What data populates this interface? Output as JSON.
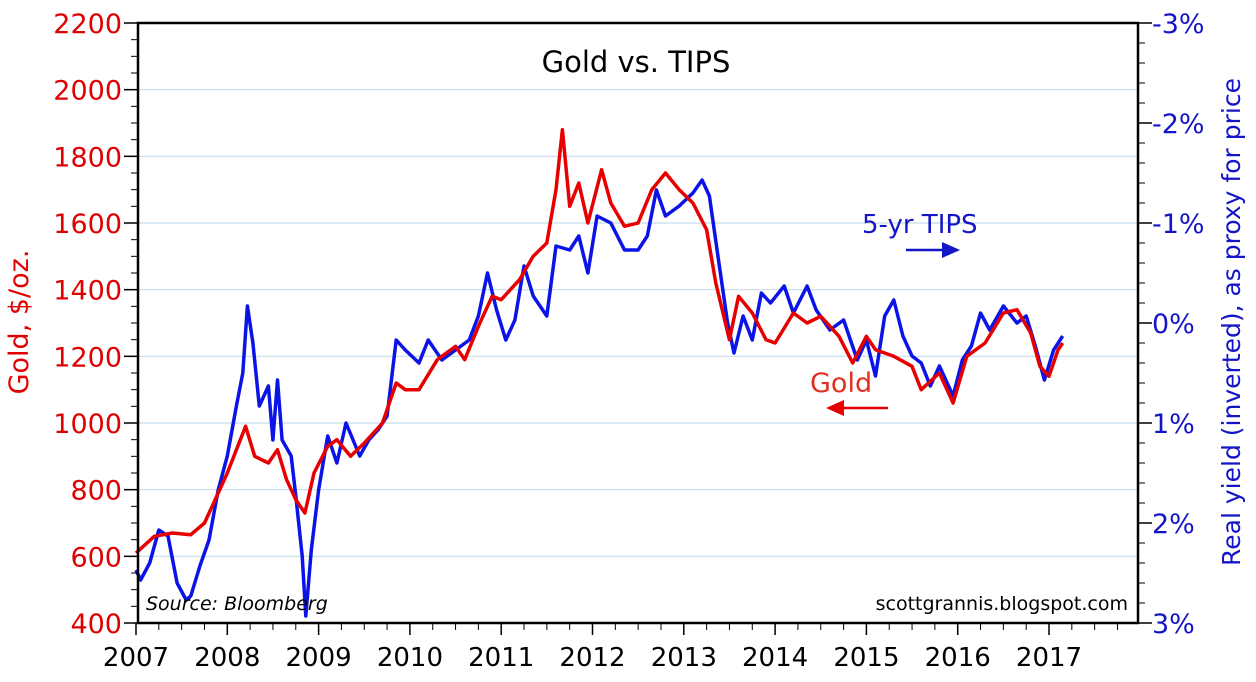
{
  "chart_data": {
    "type": "line",
    "title": "Gold vs. TIPS",
    "ylabel_left": "Gold, $/oz.",
    "ylabel_right": "Real yield (inverted), as proxy for price",
    "xlim": [
      2007,
      2017.6
    ],
    "ylim_left": [
      400,
      2200
    ],
    "ylim_right": [
      3,
      -3
    ],
    "x_ticks": [
      "2007",
      "2008",
      "2009",
      "2010",
      "2011",
      "2012",
      "2013",
      "2014",
      "2015",
      "2016",
      "2017"
    ],
    "y_ticks_left": [
      "400",
      "600",
      "800",
      "1000",
      "1200",
      "1400",
      "1600",
      "1800",
      "2000",
      "2200"
    ],
    "y_ticks_right": [
      "-3%",
      "-2%",
      "-1%",
      "0%",
      "1%",
      "2%",
      "3%"
    ],
    "grid": true,
    "source": "Source: Bloomberg",
    "credit": "scottgrannis.blogspot.com",
    "annotations": [
      {
        "text": "5-yr TIPS",
        "arrow": "right",
        "color": "#1515c8"
      },
      {
        "text": "Gold",
        "arrow": "left",
        "color": "#e0301e"
      }
    ],
    "series": [
      {
        "name": "Gold",
        "axis": "left",
        "color": "#e80000",
        "x": [
          2007.0,
          2007.2,
          2007.4,
          2007.6,
          2007.75,
          2007.9,
          2008.0,
          2008.1,
          2008.2,
          2008.3,
          2008.45,
          2008.55,
          2008.65,
          2008.75,
          2008.85,
          2008.95,
          2009.1,
          2009.2,
          2009.35,
          2009.5,
          2009.7,
          2009.85,
          2009.95,
          2010.1,
          2010.3,
          2010.5,
          2010.6,
          2010.75,
          2010.9,
          2011.0,
          2011.2,
          2011.35,
          2011.5,
          2011.6,
          2011.67,
          2011.75,
          2011.85,
          2011.95,
          2012.1,
          2012.2,
          2012.35,
          2012.5,
          2012.65,
          2012.8,
          2012.95,
          2013.1,
          2013.25,
          2013.35,
          2013.5,
          2013.6,
          2013.75,
          2013.9,
          2014.0,
          2014.2,
          2014.35,
          2014.5,
          2014.7,
          2014.85,
          2015.0,
          2015.1,
          2015.3,
          2015.5,
          2015.6,
          2015.8,
          2015.95,
          2016.1,
          2016.3,
          2016.5,
          2016.65,
          2016.8,
          2016.9,
          2017.0,
          2017.1,
          2017.15
        ],
        "values": [
          610,
          660,
          670,
          665,
          700,
          790,
          850,
          920,
          990,
          900,
          880,
          920,
          830,
          770,
          730,
          850,
          930,
          950,
          900,
          940,
          1000,
          1120,
          1100,
          1100,
          1190,
          1230,
          1190,
          1290,
          1380,
          1370,
          1430,
          1500,
          1540,
          1700,
          1880,
          1650,
          1720,
          1600,
          1760,
          1660,
          1590,
          1600,
          1700,
          1750,
          1700,
          1660,
          1580,
          1420,
          1250,
          1380,
          1330,
          1250,
          1240,
          1330,
          1300,
          1320,
          1260,
          1180,
          1260,
          1220,
          1200,
          1170,
          1100,
          1150,
          1060,
          1200,
          1240,
          1330,
          1340,
          1270,
          1170,
          1140,
          1220,
          1240
        ]
      },
      {
        "name": "5-yr TIPS",
        "axis": "right",
        "color": "#0a14e6",
        "x": [
          2007.0,
          2007.05,
          2007.15,
          2007.25,
          2007.35,
          2007.45,
          2007.55,
          2007.6,
          2007.7,
          2007.8,
          2007.9,
          2008.0,
          2008.1,
          2008.17,
          2008.22,
          2008.28,
          2008.35,
          2008.45,
          2008.5,
          2008.55,
          2008.6,
          2008.7,
          2008.75,
          2008.82,
          2008.86,
          2008.92,
          2009.0,
          2009.1,
          2009.2,
          2009.3,
          2009.45,
          2009.55,
          2009.65,
          2009.75,
          2009.85,
          2009.95,
          2010.1,
          2010.2,
          2010.35,
          2010.5,
          2010.65,
          2010.75,
          2010.85,
          2010.95,
          2011.05,
          2011.15,
          2011.25,
          2011.35,
          2011.5,
          2011.6,
          2011.75,
          2011.85,
          2011.95,
          2012.05,
          2012.2,
          2012.35,
          2012.5,
          2012.6,
          2012.7,
          2012.8,
          2012.95,
          2013.1,
          2013.2,
          2013.28,
          2013.38,
          2013.48,
          2013.55,
          2013.65,
          2013.75,
          2013.85,
          2013.95,
          2014.1,
          2014.2,
          2014.35,
          2014.45,
          2014.6,
          2014.75,
          2014.9,
          2015.0,
          2015.1,
          2015.2,
          2015.3,
          2015.4,
          2015.5,
          2015.6,
          2015.7,
          2015.8,
          2015.95,
          2016.05,
          2016.15,
          2016.25,
          2016.35,
          2016.5,
          2016.65,
          2016.75,
          2016.85,
          2016.95,
          2017.05,
          2017.15
        ],
        "values": [
          2.47,
          2.57,
          2.4,
          2.07,
          2.13,
          2.6,
          2.77,
          2.73,
          2.43,
          2.17,
          1.67,
          1.33,
          0.83,
          0.5,
          -0.17,
          0.2,
          0.83,
          0.63,
          1.17,
          0.57,
          1.17,
          1.33,
          1.73,
          2.33,
          2.93,
          2.27,
          1.67,
          1.13,
          1.4,
          1.0,
          1.33,
          1.17,
          1.07,
          0.93,
          0.17,
          0.27,
          0.4,
          0.17,
          0.37,
          0.27,
          0.17,
          -0.07,
          -0.5,
          -0.13,
          0.17,
          -0.03,
          -0.57,
          -0.27,
          -0.07,
          -0.77,
          -0.73,
          -0.87,
          -0.5,
          -1.07,
          -1.0,
          -0.73,
          -0.73,
          -0.87,
          -1.33,
          -1.07,
          -1.17,
          -1.3,
          -1.43,
          -1.27,
          -0.63,
          0.0,
          0.3,
          -0.07,
          0.17,
          -0.3,
          -0.2,
          -0.37,
          -0.1,
          -0.37,
          -0.13,
          0.07,
          -0.03,
          0.37,
          0.17,
          0.53,
          -0.07,
          -0.23,
          0.13,
          0.33,
          0.4,
          0.63,
          0.43,
          0.73,
          0.37,
          0.23,
          -0.1,
          0.07,
          -0.17,
          0.0,
          -0.07,
          0.23,
          0.57,
          0.27,
          0.13
        ]
      }
    ]
  }
}
